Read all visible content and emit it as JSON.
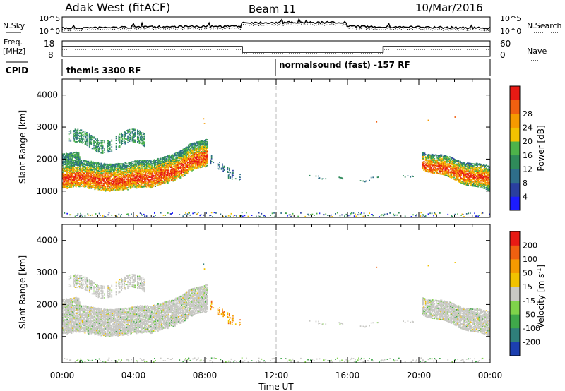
{
  "header": {
    "station": "Adak West (fitACF)",
    "beam": "Beam 11",
    "date": "10/Mar/2016"
  },
  "left_labels": {
    "nsky": "N.Sky",
    "freq1": "Freq.",
    "freq2": "[MHz]",
    "cpid": "CPID"
  },
  "right_labels": {
    "nsearch": "N.Search",
    "nave": "Nave"
  },
  "noise_axis": {
    "left_top": "10^5",
    "left_bottom": "10^0",
    "right_top": "10^5",
    "right_bottom": "10^0"
  },
  "freq_axis": {
    "left_top": "18",
    "left_bottom": "8",
    "right_top": "60",
    "right_bottom": "0"
  },
  "cpid": {
    "segment1": "themis 3300 RF",
    "segment2": "normalsound (fast) -157 RF"
  },
  "x_axis": {
    "label": "Time UT",
    "ticks": [
      "00:00",
      "04:00",
      "08:00",
      "12:00",
      "16:00",
      "20:00",
      "00:00"
    ]
  },
  "power_panel": {
    "ylabel": "Slant Range [km]",
    "yticks": [
      "1000",
      "2000",
      "3000",
      "4000"
    ],
    "colorbar_label": "Power [dB]",
    "colorbar_ticks": [
      "4",
      "8",
      "12",
      "16",
      "20",
      "24",
      "28"
    ],
    "colors": [
      "#1c1cff",
      "#2a3f9f",
      "#2e6e8a",
      "#2f8b5a",
      "#4db34a",
      "#f2c200",
      "#f59a00",
      "#f06010",
      "#e81a14"
    ]
  },
  "velocity_panel": {
    "ylabel": "Slant Range [km]",
    "yticks": [
      "1000",
      "2000",
      "3000",
      "4000"
    ],
    "colorbar_label": "Velocity [m s^-1]",
    "colorbar_ticks": [
      "200",
      "100",
      "50",
      "15",
      "-15",
      "-50",
      "-100",
      "-200"
    ],
    "colors": [
      "#1c3fb0",
      "#2f7f7a",
      "#3fa84a",
      "#7fd34a",
      "#c8c8c4",
      "#f2c200",
      "#f59a00",
      "#f06010",
      "#e81a14"
    ]
  },
  "chart_data": {
    "type": "heatmap",
    "x_range": [
      "00:00",
      "24:00"
    ],
    "y_range_km": [
      180,
      4500
    ],
    "series": [
      {
        "name": "Power [dB]",
        "zlim": [
          0,
          30
        ]
      },
      {
        "name": "Velocity [m s^-1]",
        "zlim": [
          -250,
          250
        ]
      }
    ]
  }
}
